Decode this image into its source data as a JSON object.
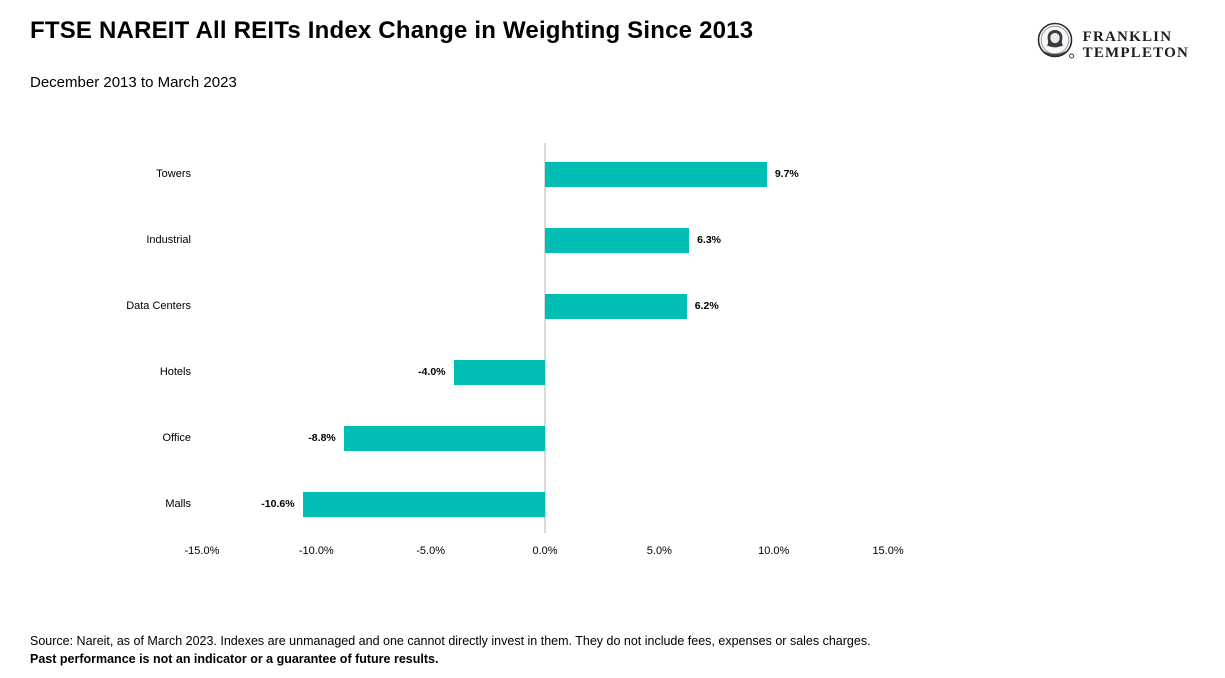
{
  "header": {
    "title": "FTSE NAREIT All REITs Index Change in Weighting Since 2013",
    "subtitle": "December 2013 to March 2023"
  },
  "logo": {
    "line1": "FRANKLIN",
    "line2": "TEMPLETON",
    "medallion_icon": "franklin-portrait-icon"
  },
  "chart_data": {
    "type": "bar",
    "orientation": "horizontal",
    "title": "FTSE NAREIT All REITs Index Change in Weighting Since 2013",
    "subtitle": "December 2013 to March 2023",
    "categories": [
      "Towers",
      "Industrial",
      "Data Centers",
      "Hotels",
      "Office",
      "Malls"
    ],
    "values": [
      9.7,
      6.3,
      6.2,
      -4.0,
      -8.8,
      -10.6
    ],
    "value_labels": [
      "9.7%",
      "6.3%",
      "6.2%",
      "-4.0%",
      "-8.8%",
      "-10.6%"
    ],
    "x_tick_values": [
      -15,
      -10,
      -5,
      0,
      5,
      10,
      15
    ],
    "x_tick_labels": [
      "-15.0%",
      "-10.0%",
      "-5.0%",
      "0.0%",
      "5.0%",
      "10.0%",
      "15.0%"
    ],
    "xlim": [
      -15,
      15
    ],
    "bar_color": "#00beb3",
    "axis_line_color": "#d9d9d9",
    "grid": "none",
    "legend": "none"
  },
  "footer": {
    "line1": "Source: Nareit, as of March 2023. Indexes are unmanaged and one cannot directly invest in them. They do not include fees, expenses or sales charges.",
    "line2": "Past performance is not an indicator or a guarantee of future results."
  }
}
